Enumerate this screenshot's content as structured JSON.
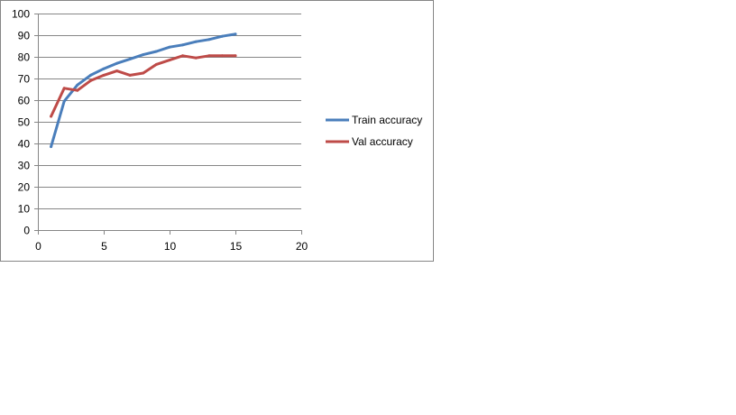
{
  "chart_data": {
    "type": "line",
    "title": "",
    "xlabel": "",
    "ylabel": "",
    "xlim": [
      0,
      20
    ],
    "ylim": [
      0,
      100
    ],
    "x_ticks": [
      0,
      5,
      10,
      15,
      20
    ],
    "y_ticks": [
      0,
      10,
      20,
      30,
      40,
      50,
      60,
      70,
      80,
      90,
      100
    ],
    "grid": "horizontal",
    "legend_position": "right",
    "x": [
      1,
      2,
      3,
      4,
      5,
      6,
      7,
      8,
      9,
      10,
      11,
      12,
      13,
      14,
      15
    ],
    "series": [
      {
        "name": "Train accuracy",
        "color": "#4A7EBB",
        "values": [
          38.5,
          59.5,
          67,
          71.5,
          74.5,
          77,
          79,
          81,
          82.5,
          84.5,
          85.5,
          87,
          88,
          89.5,
          90.5
        ]
      },
      {
        "name": "Val accuracy",
        "color": "#BE4B48",
        "values": [
          52.5,
          65.5,
          64.5,
          69,
          71.5,
          73.5,
          71.5,
          72.5,
          76.5,
          78.5,
          80.5,
          79.5,
          80.5,
          80.5,
          80.5
        ]
      }
    ]
  }
}
